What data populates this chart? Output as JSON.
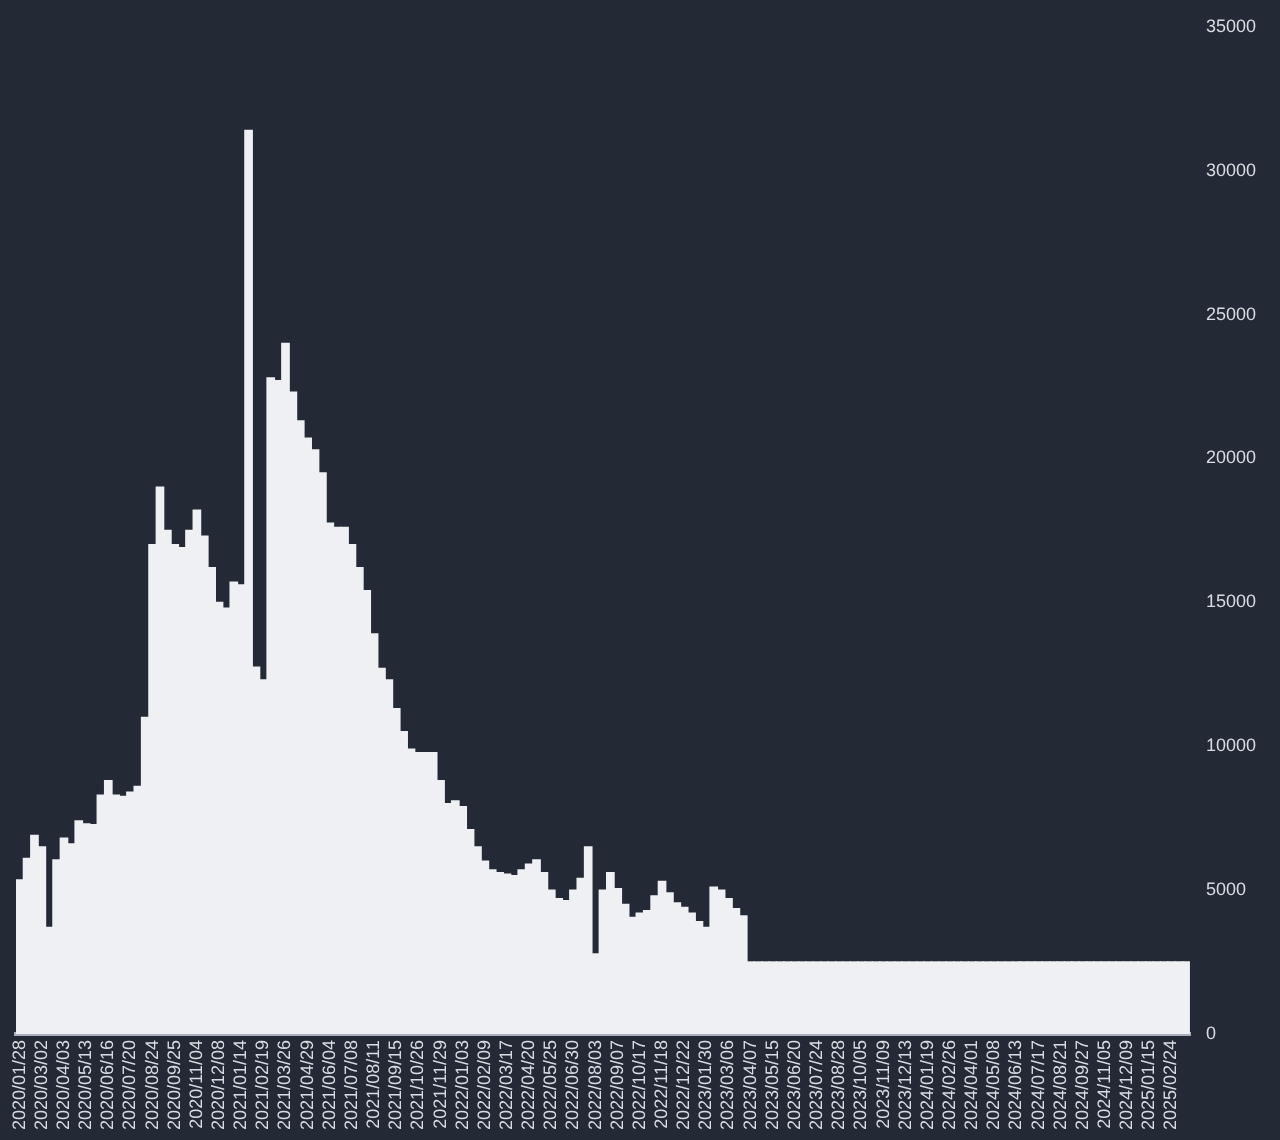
{
  "chart_data": {
    "type": "bar",
    "color": "#eef0f3",
    "categories": [
      "2020/01/28",
      null,
      null,
      "2020/03/02",
      null,
      null,
      "2020/04/03",
      null,
      null,
      "2020/05/13",
      null,
      null,
      "2020/06/16",
      null,
      null,
      "2020/07/20",
      null,
      null,
      "2020/08/24",
      null,
      null,
      "2020/09/25",
      null,
      null,
      "2020/11/04",
      null,
      null,
      "2020/12/08",
      null,
      null,
      "2021/01/14",
      null,
      null,
      "2021/02/19",
      null,
      null,
      "2021/03/26",
      null,
      null,
      "2021/04/29",
      null,
      null,
      "2021/06/04",
      null,
      null,
      "2021/07/08",
      null,
      null,
      "2021/08/11",
      null,
      null,
      "2021/09/15",
      null,
      null,
      "2021/10/26",
      null,
      null,
      "2021/11/29",
      null,
      null,
      "2022/01/03",
      null,
      null,
      "2022/02/09",
      null,
      null,
      "2022/03/17",
      null,
      null,
      "2022/04/20",
      null,
      null,
      "2022/05/25",
      null,
      null,
      "2022/06/30",
      null,
      null,
      "2022/08/03",
      null,
      null,
      "2022/09/07",
      null,
      null,
      "2022/10/17",
      null,
      null,
      "2022/11/18",
      null,
      null,
      "2022/12/22",
      null,
      null,
      "2023/01/30",
      null,
      null,
      "2023/03/06",
      null,
      null,
      "2023/04/07",
      null,
      null,
      "2023/05/15",
      null,
      null,
      "2023/06/20",
      null,
      null,
      "2023/07/24",
      null,
      null,
      "2023/08/28",
      null,
      null,
      "2023/10/05",
      null,
      null,
      "2023/11/09",
      null,
      null,
      "2023/12/13",
      null,
      null,
      "2024/01/19",
      null,
      null,
      "2024/02/26",
      null,
      null,
      "2024/04/01",
      null,
      null,
      "2024/05/08",
      null,
      null,
      "2024/06/13",
      null,
      null,
      "2024/07/17",
      null,
      null,
      "2024/08/21",
      null,
      null,
      "2024/09/27",
      null,
      null,
      "2024/11/05",
      null,
      null,
      "2024/12/09",
      null,
      null,
      "2025/01/15",
      null,
      null,
      "2025/02/24",
      null,
      null
    ],
    "values": [
      5350,
      6100,
      6900,
      6500,
      3700,
      6050,
      6800,
      6600,
      7400,
      7300,
      7270,
      8300,
      8800,
      8300,
      8250,
      8400,
      8600,
      11000,
      17000,
      19000,
      17500,
      17000,
      16900,
      17500,
      18200,
      17300,
      16200,
      15000,
      14800,
      15700,
      15600,
      31400,
      12750,
      12300,
      22800,
      22700,
      24000,
      22300,
      21300,
      20700,
      20300,
      19500,
      17750,
      17600,
      17600,
      17000,
      16200,
      15400,
      13900,
      12700,
      12300,
      11300,
      10500,
      9900,
      9770,
      9770,
      9770,
      8800,
      8000,
      8100,
      7900,
      7100,
      6500,
      6000,
      5700,
      5600,
      5550,
      5500,
      5700,
      5900,
      6050,
      5600,
      5000,
      4700,
      4630,
      5000,
      5400,
      6500,
      2780,
      5000,
      5600,
      5050,
      4500,
      4050,
      4200,
      4280,
      4800,
      5300,
      4900,
      4550,
      4400,
      4200,
      3900,
      3700,
      5100,
      5000,
      4700,
      4350,
      4100,
      2500,
      2500,
      2500,
      2500,
      2500,
      2500,
      2500,
      2500,
      2500,
      2500,
      2500,
      2500,
      2500,
      2500,
      2500,
      2500,
      2500,
      2500,
      2500,
      2500,
      2500,
      2500,
      2500,
      2500,
      2500,
      2500,
      2500,
      2500,
      2500,
      2500,
      2500,
      2500,
      2500,
      2500,
      2500,
      2500,
      2500,
      2500,
      2500,
      2500,
      2500,
      2500,
      2500,
      2500,
      2500,
      2500,
      2500,
      2500,
      2500,
      2500,
      2500,
      2500,
      2500,
      2500,
      2500,
      2500,
      2500,
      2500,
      2500,
      2500
    ],
    "ylim": [
      0,
      35000
    ],
    "yticks": [
      0,
      5000,
      10000,
      15000,
      20000,
      25000,
      30000,
      35000
    ],
    "grid": false,
    "legend": false
  }
}
